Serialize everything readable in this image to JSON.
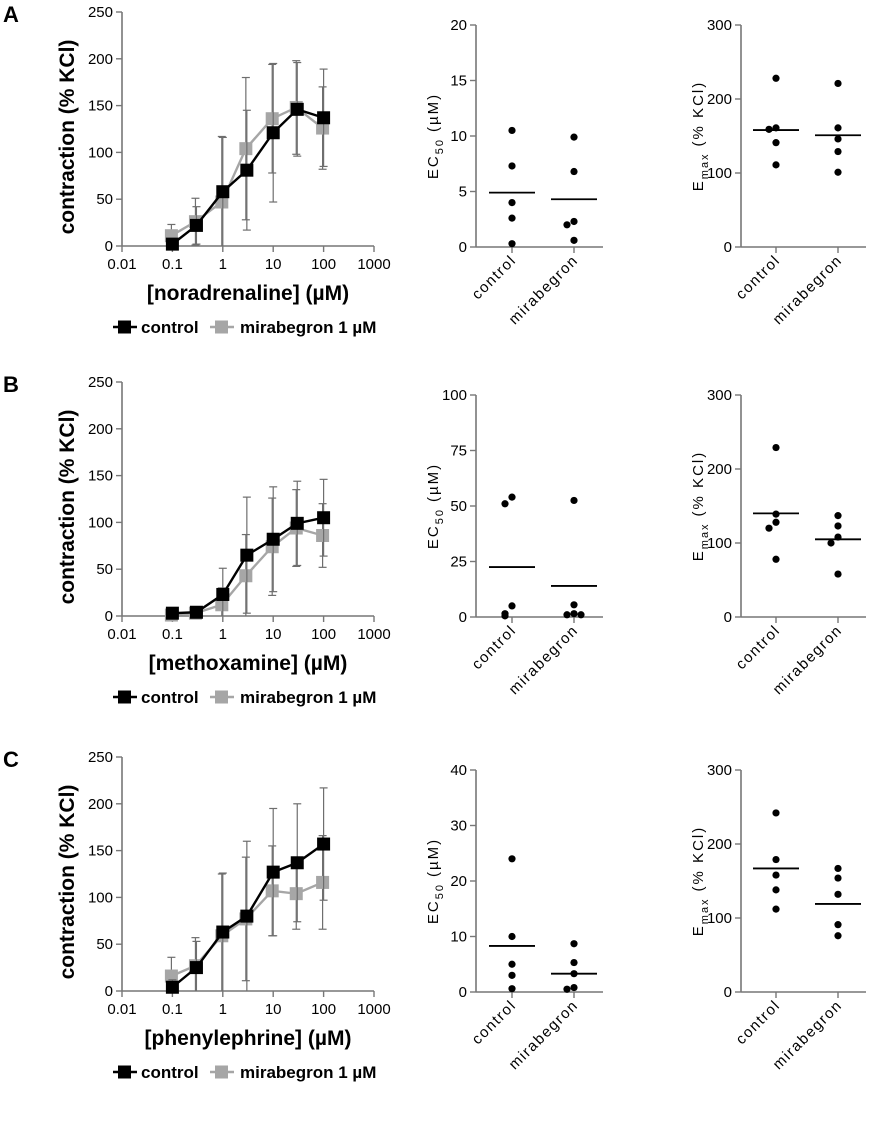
{
  "colors": {
    "control": "#000000",
    "mirabegron": "#a6a6a6",
    "errorbar": "#6e6e6e",
    "axis": "#777777"
  },
  "panels": [
    {
      "label": "A",
      "curve": {
        "xlabel": "[noradrenaline] (µM)",
        "ylabel": "contraction (% KCl)",
        "ylim": [
          0,
          250
        ],
        "yticks": [
          "0",
          "50",
          "100",
          "150",
          "200",
          "250"
        ],
        "xticks": [
          "0.01",
          "0.1",
          "1",
          "10",
          "100",
          "1000"
        ],
        "x": [
          0.1,
          0.3,
          1,
          3,
          10,
          30,
          100
        ],
        "series": [
          {
            "name": "control",
            "values": [
              2,
              22,
              58,
              81,
              121,
              146,
              137
            ],
            "err": [
              6,
              20,
              58,
              64,
              74,
              50,
              52
            ]
          },
          {
            "name": "mirabegron 1 µM",
            "values": [
              11,
              26,
              47,
              104,
              136,
              148,
              126
            ],
            "err": [
              12,
              25,
              70,
              76,
              58,
              50,
              44
            ]
          }
        ]
      },
      "legend": {
        "control": "control",
        "mirabegron": "mirabegron 1 µM"
      },
      "ec50": {
        "ylabel_main": "EC",
        "ylabel_sub": "50",
        "ylabel_unit": "(µM)",
        "ylim": [
          0,
          20
        ],
        "yticks": [
          "0",
          "5",
          "10",
          "15",
          "20"
        ],
        "categories": [
          "control",
          "mirabegron"
        ],
        "points": [
          [
            10.5,
            7.3,
            4.0,
            2.6,
            0.3
          ],
          [
            9.9,
            6.8,
            2.3,
            2.0,
            0.6
          ]
        ],
        "means": [
          4.9,
          4.3
        ]
      },
      "emax": {
        "ylabel_main": "E",
        "ylabel_sub": "max",
        "ylabel_unit": "(% KCl)",
        "ylim": [
          0,
          300
        ],
        "yticks": [
          "0",
          "100",
          "200",
          "300"
        ],
        "categories": [
          "control",
          "mirabegron"
        ],
        "points": [
          [
            228,
            161,
            159,
            141,
            111
          ],
          [
            221,
            161,
            146,
            129,
            101
          ]
        ],
        "means": [
          158,
          151
        ]
      }
    },
    {
      "label": "B",
      "curve": {
        "xlabel": "[methoxamine] (µM)",
        "ylabel": "contraction (% KCl)",
        "ylim": [
          0,
          250
        ],
        "yticks": [
          "0",
          "50",
          "100",
          "150",
          "200",
          "250"
        ],
        "xticks": [
          "0.01",
          "0.1",
          "1",
          "10",
          "100",
          "1000"
        ],
        "x": [
          0.1,
          0.3,
          1,
          3,
          10,
          30,
          100
        ],
        "series": [
          {
            "name": "control",
            "values": [
              3,
              4,
              23,
              65,
              82,
              99,
              105
            ],
            "err": [
              4,
              4,
              28,
              62,
              56,
              45,
              41
            ]
          },
          {
            "name": "mirabegron 1 µM",
            "values": [
              1,
              3,
              12,
              43,
              74,
              94,
              86
            ],
            "err": [
              3,
              3,
              18,
              44,
              52,
              41,
              34
            ]
          }
        ]
      },
      "legend": {
        "control": "control",
        "mirabegron": "mirabegron 1 µM"
      },
      "ec50": {
        "ylabel_main": "EC",
        "ylabel_sub": "50",
        "ylabel_unit": "(µM)",
        "ylim": [
          0,
          100
        ],
        "yticks": [
          "0",
          "25",
          "50",
          "75",
          "100"
        ],
        "categories": [
          "control",
          "mirabegron"
        ],
        "points": [
          [
            54,
            51,
            5,
            1.5,
            0.5
          ],
          [
            52.5,
            5.5,
            1.5,
            1,
            1
          ]
        ],
        "means": [
          22.5,
          14
        ]
      },
      "emax": {
        "ylabel_main": "E",
        "ylabel_sub": "max",
        "ylabel_unit": "(% KCl)",
        "ylim": [
          0,
          300
        ],
        "yticks": [
          "0",
          "100",
          "200",
          "300"
        ],
        "categories": [
          "control",
          "mirabegron"
        ],
        "points": [
          [
            229,
            139,
            128,
            120,
            78
          ],
          [
            137,
            123,
            108,
            100,
            58
          ]
        ],
        "means": [
          140,
          105
        ]
      }
    },
    {
      "label": "C",
      "curve": {
        "xlabel": "[phenylephrine] (µM)",
        "ylabel": "contraction (% KCl)",
        "ylim": [
          0,
          250
        ],
        "yticks": [
          "0",
          "50",
          "100",
          "150",
          "200",
          "250"
        ],
        "xticks": [
          "0.01",
          "0.1",
          "1",
          "10",
          "100",
          "1000"
        ],
        "x": [
          0.1,
          0.3,
          1,
          3,
          10,
          30,
          100
        ],
        "series": [
          {
            "name": "control",
            "values": [
              4,
              25,
              63,
              80,
              127,
              137,
              157
            ],
            "err": [
              8,
              28,
              63,
              80,
              68,
              63,
              60
            ]
          },
          {
            "name": "mirabegron 1 µM",
            "values": [
              16,
              27,
              59,
              77,
              107,
              104,
              116
            ],
            "err": [
              20,
              30,
              66,
              66,
              48,
              38,
              50
            ]
          }
        ]
      },
      "legend": {
        "control": "control",
        "mirabegron": "mirabegron 1 µM"
      },
      "ec50": {
        "ylabel_main": "EC",
        "ylabel_sub": "50",
        "ylabel_unit": "(µM)",
        "ylim": [
          0,
          40
        ],
        "yticks": [
          "0",
          "10",
          "20",
          "30",
          "40"
        ],
        "categories": [
          "control",
          "mirabegron"
        ],
        "points": [
          [
            24,
            10,
            5,
            3,
            0.6
          ],
          [
            8.7,
            5.3,
            3.3,
            0.8,
            0.5
          ]
        ],
        "means": [
          8.3,
          3.3
        ]
      },
      "emax": {
        "ylabel_main": "E",
        "ylabel_sub": "max",
        "ylabel_unit": "(% KCl)",
        "ylim": [
          0,
          300
        ],
        "yticks": [
          "0",
          "100",
          "200",
          "300"
        ],
        "categories": [
          "control",
          "mirabegron"
        ],
        "points": [
          [
            242,
            179,
            158,
            138,
            112
          ],
          [
            167,
            154,
            132,
            91,
            76
          ]
        ],
        "means": [
          167,
          119
        ]
      }
    }
  ]
}
